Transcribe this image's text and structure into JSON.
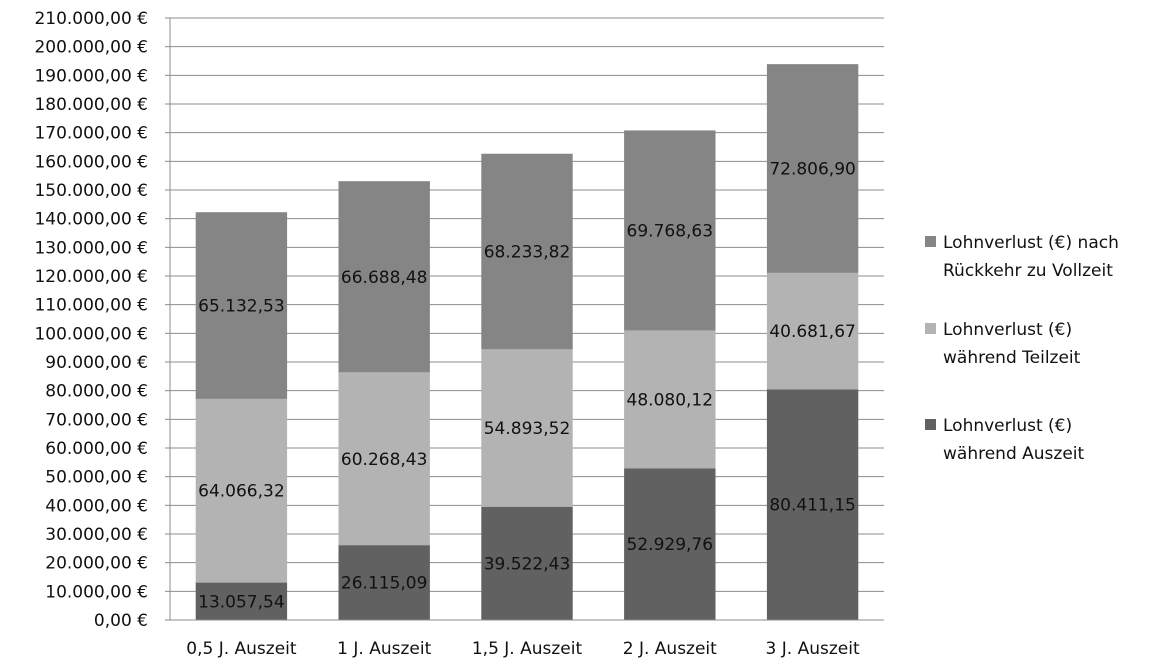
{
  "chart_data": {
    "type": "bar",
    "stacked": true,
    "categories": [
      "0,5 J. Auszeit",
      "1 J. Auszeit",
      "1,5 J. Auszeit",
      "2 J. Auszeit",
      "3 J. Auszeit"
    ],
    "series": [
      {
        "name": "Lohnverlust (€) während Auszeit",
        "legend_lines": [
          "Lohnverlust (€)",
          "während Auszeit"
        ],
        "color": "#616161",
        "values": [
          13057.54,
          26115.09,
          39522.43,
          52929.76,
          80411.15
        ],
        "labels": [
          "13.057,54",
          "26.115,09",
          "39.522,43",
          "52.929,76",
          "80.411,15"
        ]
      },
      {
        "name": "Lohnverlust (€) während Teilzeit",
        "legend_lines": [
          "Lohnverlust (€)",
          "während Teilzeit"
        ],
        "color": "#b3b3b3",
        "values": [
          64066.32,
          60268.43,
          54893.52,
          48080.12,
          40681.67
        ],
        "labels": [
          "64.066,32",
          "60.268,43",
          "54.893,52",
          "48.080,12",
          "40.681,67"
        ]
      },
      {
        "name": "Lohnverlust (€) nach Rückkehr zu Vollzeit",
        "legend_lines": [
          "Lohnverlust (€) nach",
          "Rückkehr zu Vollzeit"
        ],
        "color": "#858585",
        "values": [
          65132.53,
          66688.48,
          68233.82,
          69768.63,
          72806.9
        ],
        "labels": [
          "65.132,53",
          "66.688,48",
          "68.233,82",
          "69.768,63",
          "72.806,90"
        ]
      }
    ],
    "legend_order": [
      2,
      1,
      0
    ],
    "ylim": [
      0,
      210000
    ],
    "ytick_step": 10000,
    "yticks": [
      "0,00 €",
      "10.000,00 €",
      "20.000,00 €",
      "30.000,00 €",
      "40.000,00 €",
      "50.000,00 €",
      "60.000,00 €",
      "70.000,00 €",
      "80.000,00 €",
      "90.000,00 €",
      "100.000,00 €",
      "110.000,00 €",
      "120.000,00 €",
      "130.000,00 €",
      "140.000,00 €",
      "150.000,00 €",
      "160.000,00 €",
      "170.000,00 €",
      "180.000,00 €",
      "190.000,00 €",
      "200.000,00 €",
      "210.000,00 €"
    ],
    "grid": true,
    "legend_position": "right",
    "title": "",
    "xlabel": "",
    "ylabel": ""
  }
}
